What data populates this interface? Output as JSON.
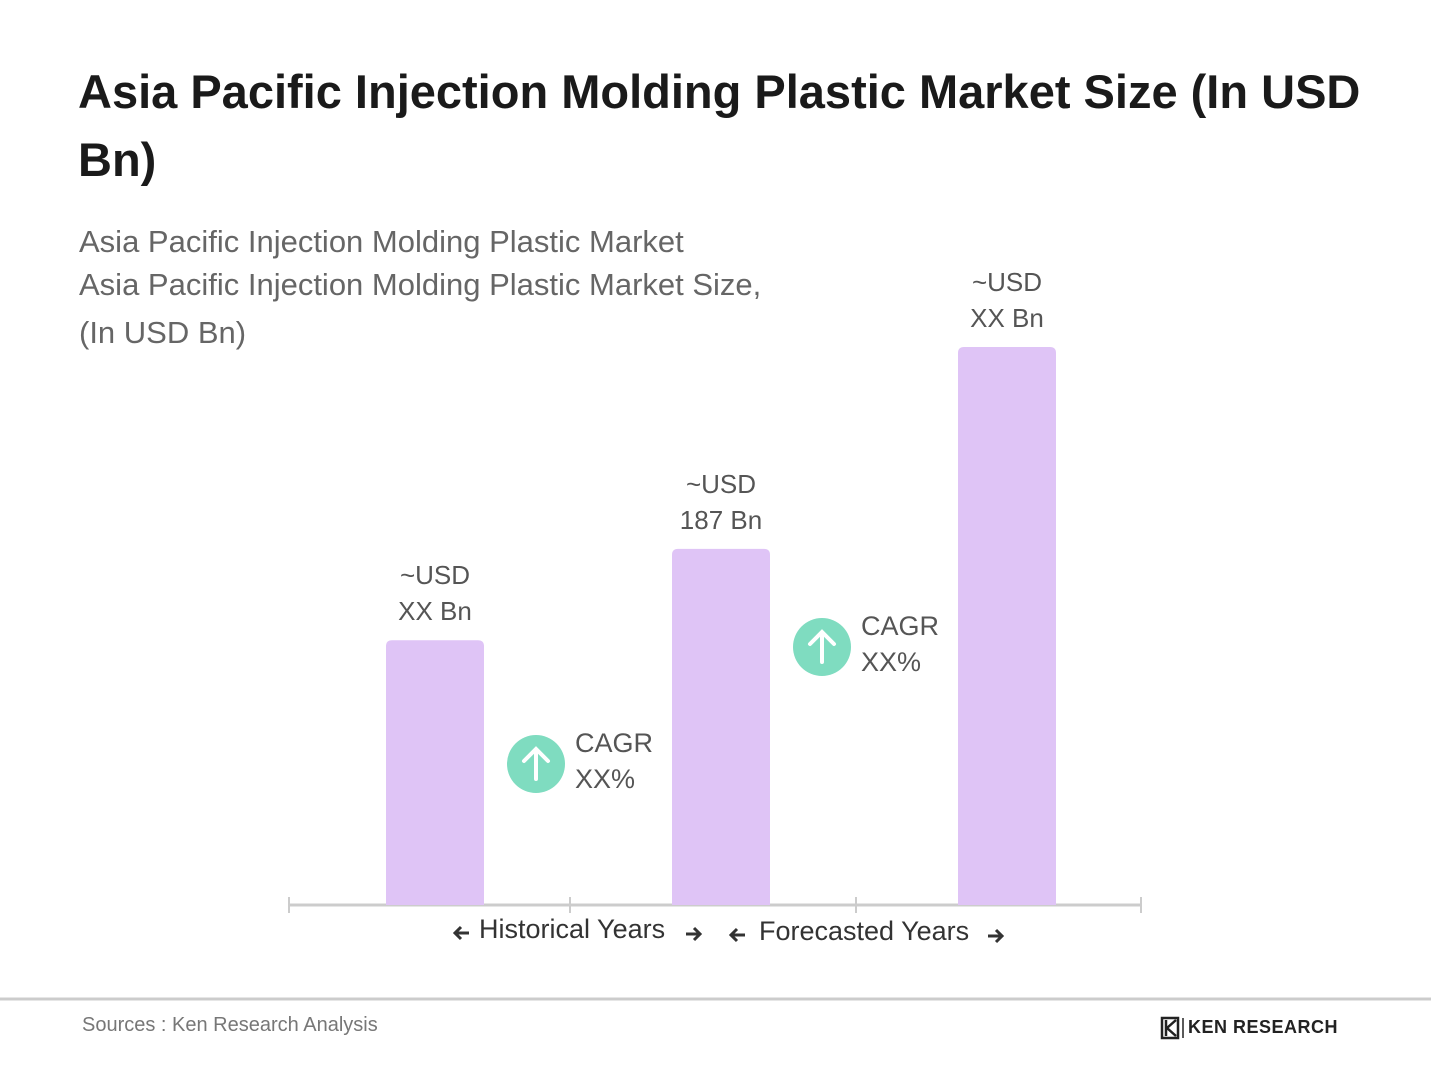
{
  "chart_data": {
    "type": "bar",
    "title": "Asia Pacific Injection Molding Plastic Market Size (In USD Bn)",
    "subtitle": [
      "Asia Pacific Injection Molding Plastic Market",
      "Asia Pacific Injection Molding Plastic Market Size,",
      "(In USD Bn)"
    ],
    "categories": [
      null,
      null,
      null
    ],
    "values": [
      139,
      187,
      293
    ],
    "value_labels": [
      "~USD XX Bn",
      "~USD 187 Bn",
      "~USD XX Bn"
    ],
    "color": "#dfc4f6",
    "annotations": [
      "CAGR XX%",
      "CAGR XX%"
    ],
    "x_sections": [
      "Historical Years",
      "Forecasted Years"
    ],
    "source": "Sources : Ken Research Analysis",
    "logo": "KEN RESEARCH"
  }
}
